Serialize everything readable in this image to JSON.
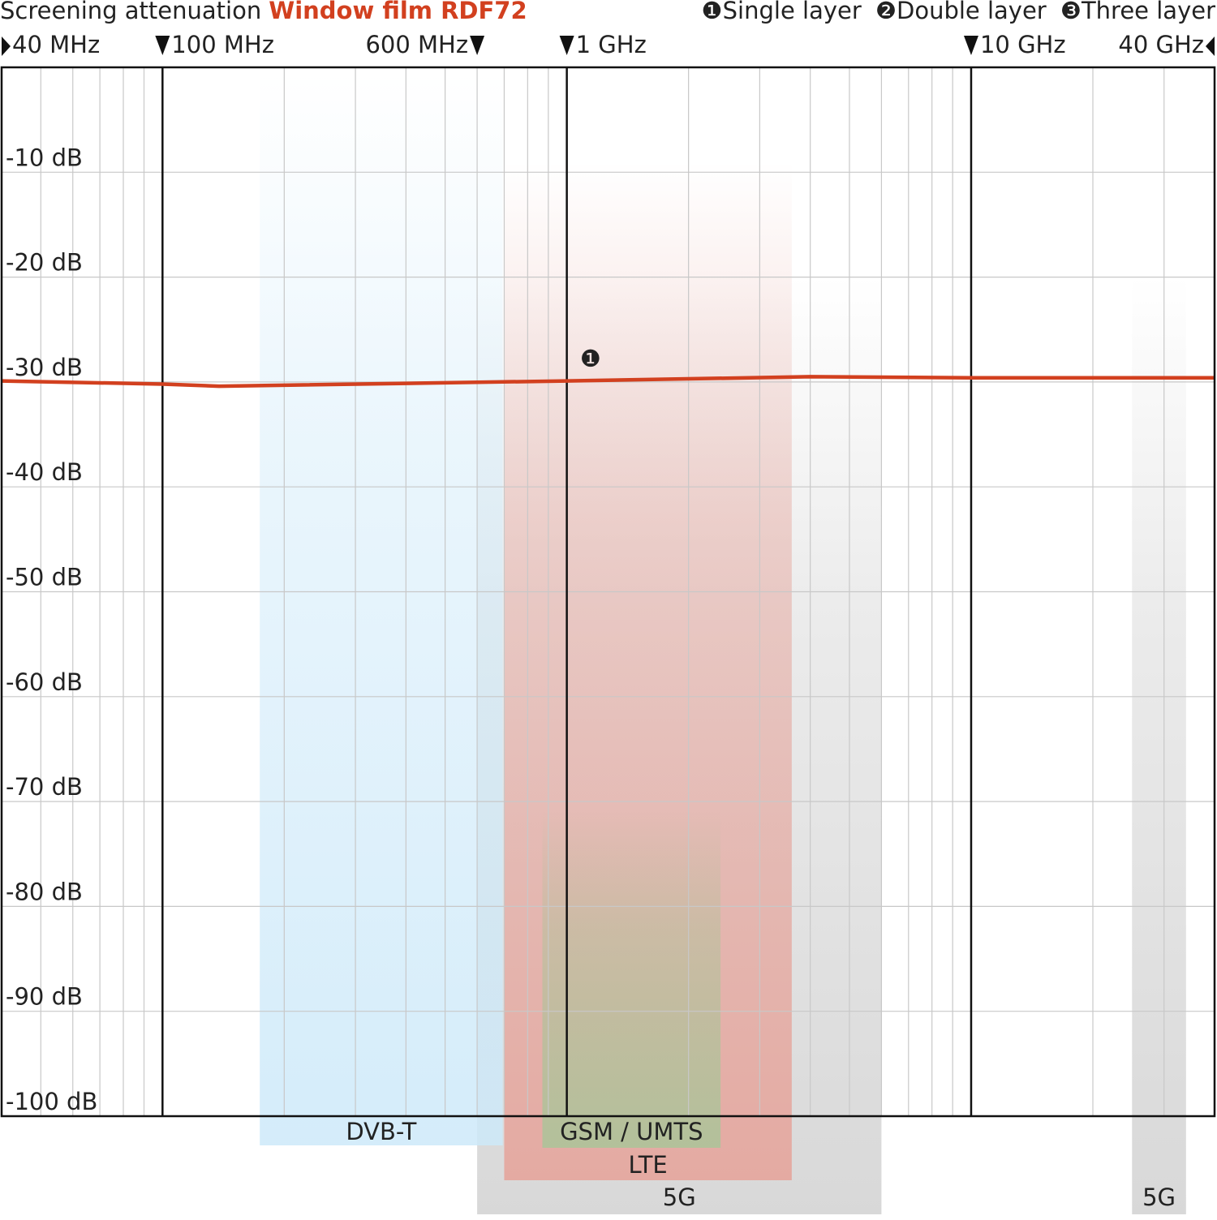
{
  "chart_data": {
    "type": "line",
    "title": "Screening attenuation",
    "title_highlight": "Window film RDF72",
    "title_highlight_color": "#d2401f",
    "x_scale": "log",
    "xlim": [
      40,
      40000
    ],
    "xticks": [
      {
        "value": 40,
        "label": "40 MHz"
      },
      {
        "value": 100,
        "label": "100 MHz"
      },
      {
        "value": 600,
        "label": "600 MHz"
      },
      {
        "value": 1000,
        "label": "1 GHz"
      },
      {
        "value": 10000,
        "label": "10 GHz"
      },
      {
        "value": 40000,
        "label": "40 GHz"
      }
    ],
    "x_major_grid": [
      100,
      1000,
      10000
    ],
    "x_minor_grid": [
      50,
      60,
      70,
      80,
      90,
      200,
      300,
      400,
      500,
      600,
      700,
      800,
      900,
      2000,
      3000,
      4000,
      5000,
      6000,
      7000,
      8000,
      9000,
      20000,
      30000
    ],
    "ylim": [
      -100,
      0
    ],
    "yticks": [
      {
        "value": -10,
        "label": "-10 dB"
      },
      {
        "value": -20,
        "label": "-20 dB"
      },
      {
        "value": -30,
        "label": "-30 dB"
      },
      {
        "value": -40,
        "label": "-40 dB"
      },
      {
        "value": -50,
        "label": "-50 dB"
      },
      {
        "value": -60,
        "label": "-60 dB"
      },
      {
        "value": -70,
        "label": "-70 dB"
      },
      {
        "value": -80,
        "label": "-80 dB"
      },
      {
        "value": -90,
        "label": "-90 dB"
      },
      {
        "value": -100,
        "label": "-100 dB"
      }
    ],
    "grid": true,
    "bands": [
      {
        "name": "5G",
        "range": [
          600,
          6000
        ],
        "color": "#d4d4d4"
      },
      {
        "name": "DVB-T",
        "range": [
          174,
          694
        ],
        "color": "#cde9f9"
      },
      {
        "name": "LTE",
        "range": [
          700,
          3600
        ],
        "color": "#e5a59c"
      },
      {
        "name": "GSM / UMTS",
        "range": [
          870,
          2400
        ],
        "color": "#b0c29a"
      },
      {
        "name": "5G",
        "range": [
          25000,
          34000
        ],
        "color": "#d4d4d4"
      }
    ],
    "x": [
      40,
      100,
      138,
      1000,
      4000,
      10000,
      40000
    ],
    "series": [
      {
        "name": "Single layer",
        "marker": "❶",
        "color": "#d2401f",
        "values": [
          -29.9,
          -30.2,
          -30.4,
          -29.9,
          -29.5,
          -29.6,
          -29.6
        ]
      }
    ],
    "legend_other": [
      {
        "marker": "❷",
        "label": "Double layer"
      },
      {
        "marker": "❸",
        "label": "Three layer"
      }
    ]
  }
}
